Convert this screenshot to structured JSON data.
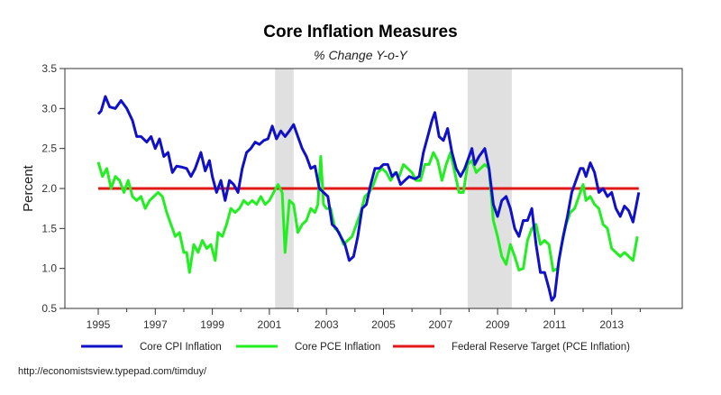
{
  "chart_data": {
    "type": "line",
    "title": "Core Inflation Measures",
    "subtitle": "% Change Y-o-Y",
    "xlabel": "",
    "ylabel": "Percent",
    "ylim": [
      0.5,
      3.5
    ],
    "xlim": [
      1993.9,
      2015.1
    ],
    "yticks": [
      "0.5",
      "1.0",
      "1.5",
      "2.0",
      "2.5",
      "3.0",
      "3.5"
    ],
    "yticks_values": [
      0.5,
      1.0,
      1.5,
      2.0,
      2.5,
      3.0,
      3.5
    ],
    "xticks_labels": [
      "1995",
      "1997",
      "1999",
      "2001",
      "2003",
      "2005",
      "2007",
      "2009",
      "2011",
      "2013"
    ],
    "xticks_minor": [
      1996,
      1998,
      2000,
      2002,
      2004,
      2006,
      2008,
      2010,
      2012,
      2014
    ],
    "grid": false,
    "legend_position": "bottom",
    "recessions": [
      {
        "start": 2001.2,
        "end": 2001.85
      },
      {
        "start": 2007.95,
        "end": 2009.5
      }
    ],
    "series": [
      {
        "name": "Core CPI Inflation",
        "color": "#1010c8",
        "x": [
          1995.0,
          1995.1,
          1995.25,
          1995.4,
          1995.6,
          1995.8,
          1996.0,
          1996.2,
          1996.35,
          1996.5,
          1996.7,
          1996.85,
          1997.0,
          1997.15,
          1997.3,
          1997.45,
          1997.6,
          1997.75,
          1997.9,
          1998.1,
          1998.25,
          1998.4,
          1998.6,
          1998.75,
          1998.9,
          1999.0,
          1999.15,
          1999.3,
          1999.45,
          1999.6,
          1999.75,
          1999.9,
          2000.05,
          2000.2,
          2000.35,
          2000.5,
          2000.65,
          2000.8,
          2000.95,
          2001.1,
          2001.25,
          2001.4,
          2001.55,
          2001.7,
          2001.85,
          2002.0,
          2002.15,
          2002.3,
          2002.45,
          2002.6,
          2002.75,
          2002.9,
          2003.05,
          2003.2,
          2003.35,
          2003.5,
          2003.65,
          2003.8,
          2003.95,
          2004.1,
          2004.25,
          2004.4,
          2004.55,
          2004.7,
          2004.85,
          2005.0,
          2005.15,
          2005.3,
          2005.45,
          2005.6,
          2005.75,
          2005.9,
          2006.1,
          2006.25,
          2006.4,
          2006.55,
          2006.7,
          2006.8,
          2006.95,
          2007.1,
          2007.25,
          2007.4,
          2007.55,
          2007.7,
          2007.85,
          2008.0,
          2008.1,
          2008.2,
          2008.35,
          2008.55,
          2008.7,
          2008.85,
          2009.0,
          2009.15,
          2009.3,
          2009.45,
          2009.6,
          2009.75,
          2009.9,
          2010.05,
          2010.2,
          2010.35,
          2010.5,
          2010.65,
          2010.8,
          2010.9,
          2011.0,
          2011.15,
          2011.3,
          2011.45,
          2011.6,
          2011.75,
          2011.9,
          2012.0,
          2012.1,
          2012.25,
          2012.4,
          2012.55,
          2012.7,
          2012.85,
          2013.0,
          2013.15,
          2013.3,
          2013.45,
          2013.6,
          2013.75,
          2013.95
        ],
        "values": [
          2.93,
          2.97,
          3.15,
          3.02,
          3.0,
          3.1,
          3.0,
          2.85,
          2.65,
          2.65,
          2.58,
          2.65,
          2.5,
          2.62,
          2.4,
          2.45,
          2.2,
          2.28,
          2.27,
          2.25,
          2.15,
          2.25,
          2.45,
          2.22,
          2.35,
          2.15,
          1.95,
          2.1,
          1.85,
          2.1,
          2.05,
          1.95,
          2.25,
          2.45,
          2.5,
          2.58,
          2.55,
          2.6,
          2.62,
          2.78,
          2.62,
          2.72,
          2.65,
          2.72,
          2.8,
          2.65,
          2.5,
          2.4,
          2.25,
          2.28,
          2.0,
          1.95,
          1.9,
          1.55,
          1.5,
          1.4,
          1.3,
          1.1,
          1.15,
          1.4,
          1.75,
          1.8,
          2.05,
          2.25,
          2.25,
          2.3,
          2.3,
          2.15,
          2.2,
          2.05,
          2.1,
          2.15,
          2.12,
          2.15,
          2.45,
          2.65,
          2.85,
          2.95,
          2.65,
          2.6,
          2.75,
          2.45,
          2.25,
          2.15,
          2.25,
          2.4,
          2.5,
          2.3,
          2.4,
          2.5,
          2.25,
          1.8,
          1.65,
          1.85,
          1.9,
          1.75,
          1.5,
          1.4,
          1.6,
          1.6,
          1.75,
          1.3,
          0.95,
          0.95,
          0.75,
          0.6,
          0.65,
          1.1,
          1.4,
          1.65,
          1.95,
          2.1,
          2.25,
          2.25,
          2.15,
          2.32,
          2.2,
          1.95,
          2.0,
          1.9,
          1.95,
          1.75,
          1.65,
          1.78,
          1.72,
          1.58,
          1.95
        ]
      },
      {
        "name": "Core PCE Inflation",
        "color": "#22ee22",
        "x": [
          1995.0,
          1995.15,
          1995.3,
          1995.45,
          1995.6,
          1995.75,
          1995.9,
          1996.05,
          1996.2,
          1996.35,
          1996.5,
          1996.65,
          1996.8,
          1996.95,
          1997.1,
          1997.25,
          1997.4,
          1997.55,
          1997.7,
          1997.85,
          1998.0,
          1998.1,
          1998.2,
          1998.35,
          1998.5,
          1998.65,
          1998.8,
          1998.95,
          1999.1,
          1999.2,
          1999.35,
          1999.5,
          1999.65,
          1999.8,
          1999.95,
          2000.1,
          2000.25,
          2000.4,
          2000.55,
          2000.7,
          2000.85,
          2001.0,
          2001.15,
          2001.3,
          2001.45,
          2001.55,
          2001.7,
          2001.85,
          2002.0,
          2002.15,
          2002.3,
          2002.45,
          2002.6,
          2002.7,
          2002.8,
          2002.9,
          2003.0,
          2003.15,
          2003.3,
          2003.45,
          2003.6,
          2003.75,
          2003.9,
          2004.05,
          2004.2,
          2004.35,
          2004.5,
          2004.65,
          2004.8,
          2004.95,
          2005.1,
          2005.25,
          2005.4,
          2005.55,
          2005.7,
          2005.85,
          2006.0,
          2006.15,
          2006.3,
          2006.45,
          2006.6,
          2006.75,
          2006.9,
          2007.05,
          2007.2,
          2007.35,
          2007.5,
          2007.65,
          2007.8,
          2007.95,
          2008.1,
          2008.25,
          2008.4,
          2008.55,
          2008.7,
          2008.85,
          2009.0,
          2009.15,
          2009.3,
          2009.45,
          2009.6,
          2009.75,
          2009.9,
          2010.05,
          2010.2,
          2010.35,
          2010.5,
          2010.65,
          2010.8,
          2010.95,
          2011.1,
          2011.25,
          2011.4,
          2011.55,
          2011.7,
          2011.85,
          2012.0,
          2012.1,
          2012.25,
          2012.4,
          2012.55,
          2012.7,
          2012.85,
          2013.0,
          2013.15,
          2013.3,
          2013.45,
          2013.6,
          2013.75,
          2013.9
        ],
        "values": [
          2.33,
          2.15,
          2.25,
          2.0,
          2.15,
          2.1,
          1.95,
          2.1,
          1.9,
          1.85,
          1.9,
          1.75,
          1.85,
          1.9,
          1.95,
          1.9,
          1.7,
          1.55,
          1.4,
          1.45,
          1.2,
          1.2,
          0.95,
          1.3,
          1.2,
          1.35,
          1.25,
          1.3,
          1.1,
          1.45,
          1.4,
          1.55,
          1.75,
          1.7,
          1.75,
          1.85,
          1.8,
          1.85,
          1.8,
          1.9,
          1.8,
          1.85,
          1.95,
          2.05,
          1.95,
          1.2,
          1.85,
          1.8,
          1.45,
          1.55,
          1.6,
          1.75,
          1.7,
          1.8,
          2.4,
          1.8,
          1.75,
          1.75,
          1.5,
          1.45,
          1.3,
          1.35,
          1.4,
          1.55,
          1.7,
          1.9,
          1.95,
          2.05,
          2.2,
          2.25,
          2.2,
          2.1,
          2.2,
          2.15,
          2.3,
          2.25,
          2.2,
          2.1,
          2.1,
          2.3,
          2.3,
          2.45,
          2.35,
          2.1,
          2.3,
          2.45,
          2.2,
          1.95,
          1.95,
          2.3,
          2.35,
          2.2,
          2.25,
          2.3,
          2.25,
          1.6,
          1.4,
          1.15,
          1.05,
          1.3,
          1.15,
          0.98,
          1.0,
          1.35,
          1.5,
          1.55,
          1.3,
          1.35,
          1.3,
          0.97,
          1.0,
          1.3,
          1.55,
          1.7,
          1.75,
          1.9,
          2.05,
          1.85,
          1.9,
          1.8,
          1.75,
          1.55,
          1.5,
          1.25,
          1.2,
          1.15,
          1.2,
          1.15,
          1.1,
          1.4
        ]
      },
      {
        "name": "Federal Reserve Target (PCE Inflation)",
        "color": "#e01818",
        "x": [
          1995.0,
          2013.95
        ],
        "values": [
          2.0,
          2.0
        ]
      }
    ],
    "source": "http://economistsview.typepad.com/timduy/"
  }
}
